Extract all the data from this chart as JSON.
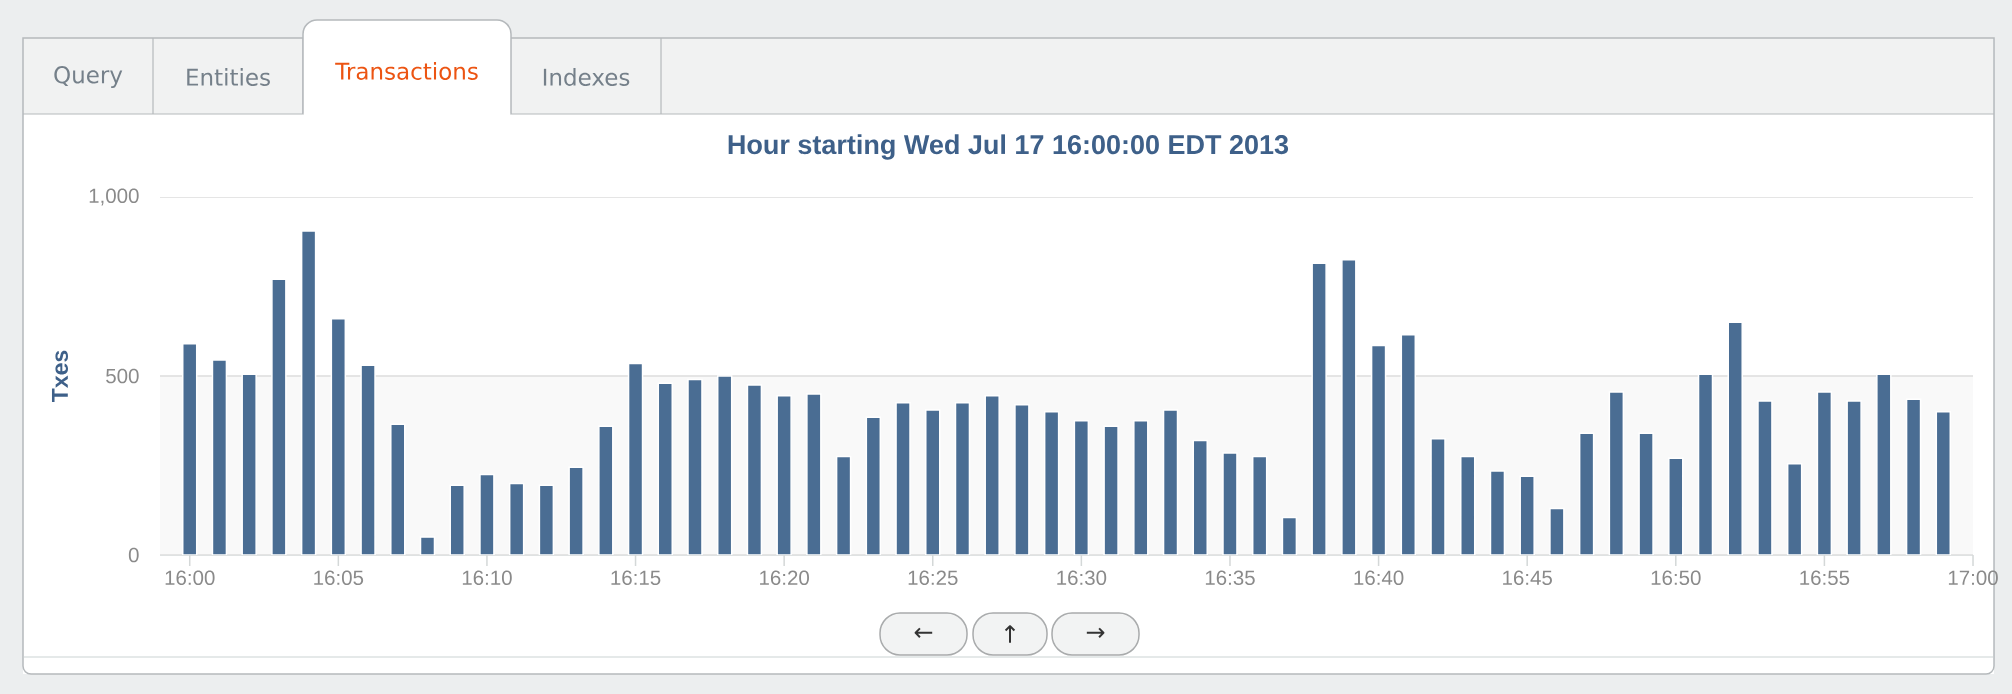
{
  "chart_data": {
    "type": "bar",
    "title": "Hour starting Wed Jul 17 16:00:00 EDT 2013",
    "ylabel": "Txes",
    "x": [
      "2013-07-17T16:00",
      "2013-07-17T16:01",
      "2013-07-17T16:02",
      "2013-07-17T16:03",
      "2013-07-17T16:04",
      "2013-07-17T16:05",
      "2013-07-17T16:06",
      "2013-07-17T16:07",
      "2013-07-17T16:08",
      "2013-07-17T16:09",
      "2013-07-17T16:10",
      "2013-07-17T16:11",
      "2013-07-17T16:12",
      "2013-07-17T16:13",
      "2013-07-17T16:14",
      "2013-07-17T16:15",
      "2013-07-17T16:16",
      "2013-07-17T16:17",
      "2013-07-17T16:18",
      "2013-07-17T16:19",
      "2013-07-17T16:20",
      "2013-07-17T16:21",
      "2013-07-17T16:22",
      "2013-07-17T16:23",
      "2013-07-17T16:24",
      "2013-07-17T16:25",
      "2013-07-17T16:26",
      "2013-07-17T16:27",
      "2013-07-17T16:28",
      "2013-07-17T16:29",
      "2013-07-17T16:30",
      "2013-07-17T16:31",
      "2013-07-17T16:32",
      "2013-07-17T16:33",
      "2013-07-17T16:34",
      "2013-07-17T16:35",
      "2013-07-17T16:36",
      "2013-07-17T16:37",
      "2013-07-17T16:38",
      "2013-07-17T16:39",
      "2013-07-17T16:40",
      "2013-07-17T16:41",
      "2013-07-17T16:42",
      "2013-07-17T16:43",
      "2013-07-17T16:44",
      "2013-07-17T16:45",
      "2013-07-17T16:46",
      "2013-07-17T16:47",
      "2013-07-17T16:48",
      "2013-07-17T16:49",
      "2013-07-17T16:50",
      "2013-07-17T16:51",
      "2013-07-17T16:52",
      "2013-07-17T16:53",
      "2013-07-17T16:54",
      "2013-07-17T16:55",
      "2013-07-17T16:56",
      "2013-07-17T16:57",
      "2013-07-17T16:58",
      "2013-07-17T16:59"
    ],
    "values": [
      590,
      545,
      505,
      770,
      905,
      660,
      530,
      365,
      50,
      195,
      225,
      200,
      195,
      245,
      360,
      535,
      480,
      490,
      500,
      475,
      445,
      450,
      275,
      385,
      425,
      405,
      425,
      445,
      420,
      400,
      375,
      360,
      375,
      405,
      320,
      285,
      275,
      105,
      815,
      825,
      585,
      615,
      325,
      275,
      235,
      220,
      130,
      340,
      455,
      340,
      270,
      505,
      650,
      430,
      255,
      455,
      430,
      505,
      435,
      400
    ],
    "color": "#4a6d93",
    "xlim": [
      "2013-07-17T15:59",
      "2013-07-17T17:00"
    ],
    "xticks": [
      {
        "value": "2013-07-17T16:00",
        "label": "16:00"
      },
      {
        "value": "2013-07-17T16:05",
        "label": "16:05"
      },
      {
        "value": "2013-07-17T16:10",
        "label": "16:10"
      },
      {
        "value": "2013-07-17T16:15",
        "label": "16:15"
      },
      {
        "value": "2013-07-17T16:20",
        "label": "16:20"
      },
      {
        "value": "2013-07-17T16:25",
        "label": "16:25"
      },
      {
        "value": "2013-07-17T16:30",
        "label": "16:30"
      },
      {
        "value": "2013-07-17T16:35",
        "label": "16:35"
      },
      {
        "value": "2013-07-17T16:40",
        "label": "16:40"
      },
      {
        "value": "2013-07-17T16:45",
        "label": "16:45"
      },
      {
        "value": "2013-07-17T16:50",
        "label": "16:50"
      },
      {
        "value": "2013-07-17T16:55",
        "label": "16:55"
      },
      {
        "value": "2013-07-17T17:00",
        "label": "17:00"
      }
    ],
    "ylim": [
      0,
      1000
    ],
    "yticks": [
      0,
      500,
      {
        "value": 1000,
        "label": "1,000"
      }
    ],
    "grid": "y",
    "bands": [
      {
        "axis": "y",
        "from": 0,
        "to": 500,
        "color": "#f9f9f9"
      }
    ],
    "annotations": [
      "Query",
      "Entities",
      "Transactions",
      "Indexes",
      "←",
      "↑",
      "→"
    ]
  }
}
